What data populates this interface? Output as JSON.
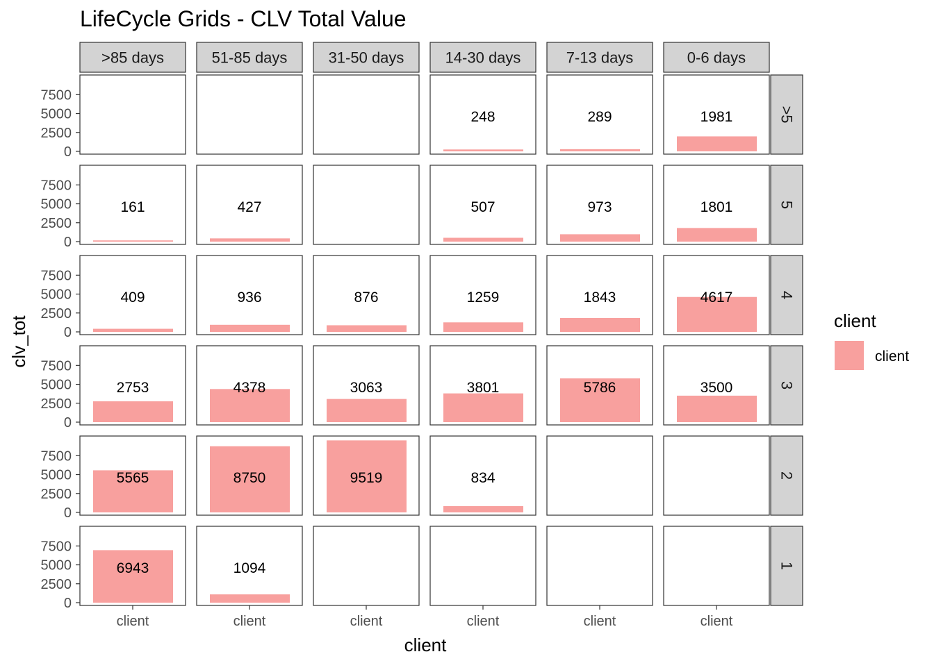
{
  "chart_data": {
    "type": "bar",
    "title": "LifeCycle Grids - CLV Total Value",
    "xlabel": "client",
    "ylabel": "clv_tot",
    "x_tick_label": "client",
    "ylim": [
      0,
      10000
    ],
    "y_ticks": [
      0,
      2500,
      5000,
      7500
    ],
    "facet_columns": [
      ">85 days",
      "51-85 days",
      "31-50 days",
      "14-30 days",
      "7-13 days",
      "0-6 days"
    ],
    "facet_rows": [
      ">5",
      "5",
      "4",
      "3",
      "2",
      "1"
    ],
    "values": [
      [
        null,
        null,
        null,
        248,
        289,
        1981
      ],
      [
        161,
        427,
        null,
        507,
        973,
        1801
      ],
      [
        409,
        936,
        876,
        1259,
        1843,
        4617
      ],
      [
        2753,
        4378,
        3063,
        3801,
        5786,
        3500
      ],
      [
        5565,
        8750,
        9519,
        834,
        null,
        null
      ],
      [
        6943,
        1094,
        null,
        null,
        null,
        null
      ]
    ],
    "legend": {
      "title": "client",
      "position": "right",
      "items": [
        {
          "label": "client",
          "color": "#F8A09E"
        }
      ]
    },
    "colors": {
      "bar": "#F8A09E",
      "strip_fill": "#D3D3D3",
      "panel_border": "#333333"
    },
    "grid": false
  }
}
